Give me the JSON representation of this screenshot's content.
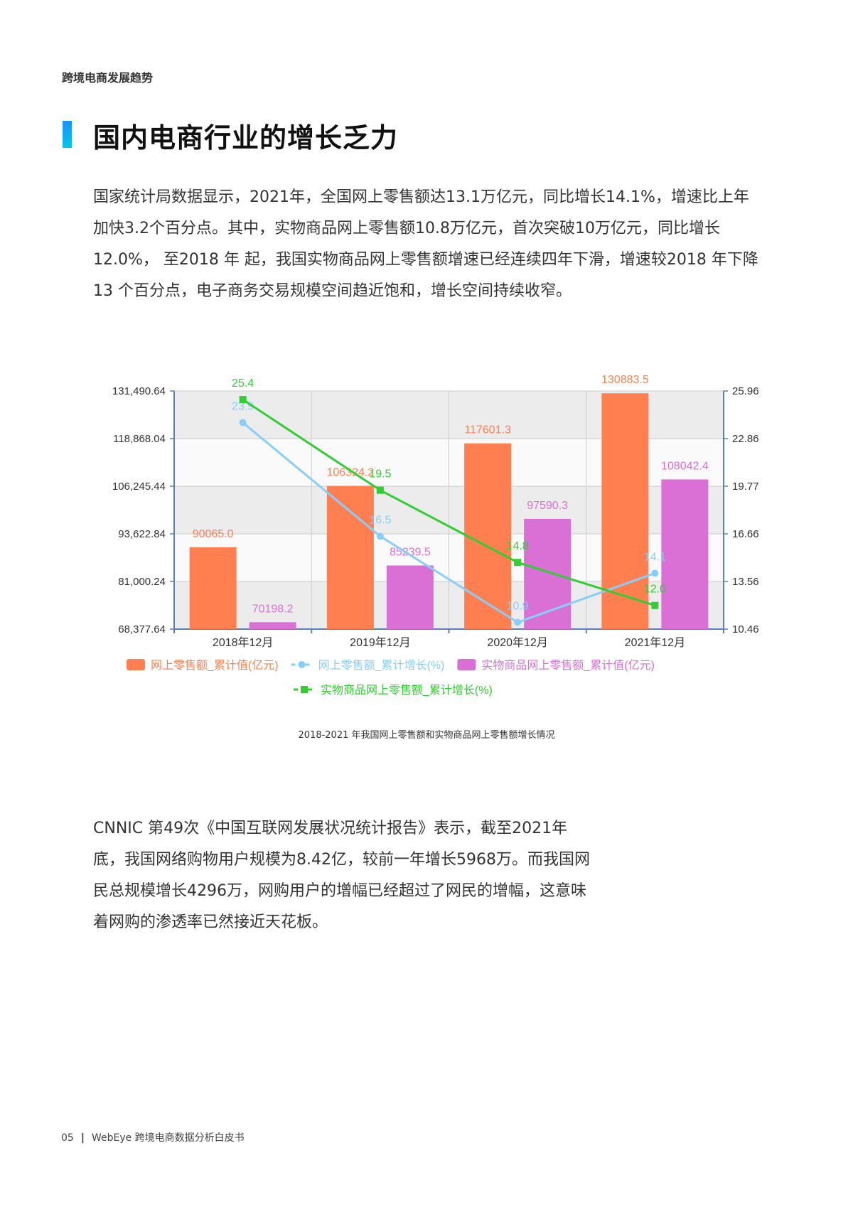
{
  "header": {
    "section": "跨境电商发展趋势"
  },
  "title": "国内电商行业的增长乏力",
  "paragraph1": "国家统计局数据显示，2021年，全国网上零售额达13.1万亿元，同比增长14.1%，增速比上年加快3.2个百分点。其中，实物商品网上零售额10.8万亿元，首次突破10万亿元，同比增长12.0%， 至2018 年 起，我国实物商品网上零售额增速已经连续四年下滑，增速较2018 年下降 13 个百分点，电子商务交易规模空间趋近饱和，增长空间持续收窄。",
  "chart_caption": "2018-2021 年我国网上零售额和实物商品网上零售额增长情况",
  "paragraph2": "CNNIC 第49次《中国互联网发展状况统计报告》表示，截至2021年底，我国网络购物用户规模为8.42亿，较前一年增长5968万。而我国网民总规模增长4296万，网购用户的增幅已经超过了网民的增幅，这意味着网购的渗透率已然接近天花板。",
  "footer": {
    "page": "05",
    "text": "WebEye 跨境电商数据分析白皮书"
  },
  "chart_data": {
    "type": "bar",
    "categories": [
      "2018年12月",
      "2019年12月",
      "2020年12月",
      "2021年12月"
    ],
    "y_left": {
      "ylim": [
        68377.64,
        131490.64
      ],
      "ticks": [
        "131,490.64",
        "118,868.04",
        "106,245.44",
        "93,622.84",
        "81,000.24",
        "68,377.64"
      ]
    },
    "y_right": {
      "ylim": [
        10.46,
        25.96
      ],
      "ticks": [
        "25.96",
        "22.86",
        "19.77",
        "16.66",
        "13.56",
        "10.46"
      ]
    },
    "series": [
      {
        "name": "网上零售额_累计值(亿元)",
        "type": "bar",
        "axis": "left",
        "color": "#ff7f50",
        "values": [
          90065.0,
          106324.2,
          117601.3,
          130883.5
        ],
        "labels": [
          "90065.0",
          "106324.2",
          "117601.3",
          "130883.5"
        ]
      },
      {
        "name": "网上零售额_累计增长(%)",
        "type": "line",
        "axis": "right",
        "color": "#87cefa",
        "values": [
          23.9,
          16.5,
          10.9,
          14.1
        ],
        "labels": [
          "23.9",
          "16.5",
          "10.9",
          "14.1"
        ]
      },
      {
        "name": "实物商品网上零售额_累计值(亿元)",
        "type": "bar",
        "axis": "left",
        "color": "#da70d6",
        "values": [
          70198.2,
          85239.5,
          97590.3,
          108042.4
        ],
        "labels": [
          "70198.2",
          "85239.5",
          "97590.3",
          "108042.4"
        ]
      },
      {
        "name": "实物商品网上零售额_累计增长(%)",
        "type": "line",
        "axis": "right",
        "color": "#32cd32",
        "values": [
          25.4,
          19.5,
          14.8,
          12.0
        ],
        "labels": [
          "25.4",
          "19.5",
          "14.8",
          "12.0"
        ]
      }
    ],
    "legend_position": "bottom",
    "grid": true
  }
}
